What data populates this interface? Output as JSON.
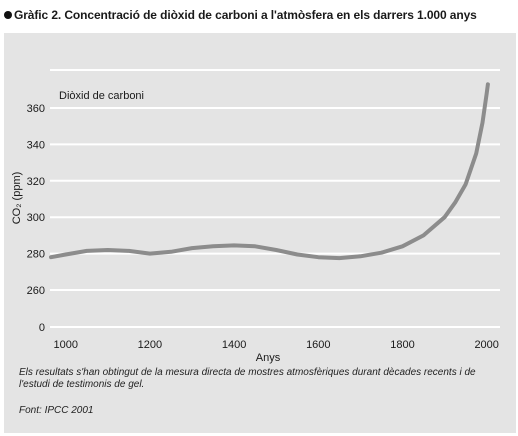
{
  "heading": {
    "title": "Gràfic 2. Concentració de diòxid de carboni a l'atmòsfera en els darrers 1.000 anys"
  },
  "chart_data": {
    "type": "line",
    "series": [
      {
        "name": "Diòxid de carboni",
        "x": [
          965,
          1000,
          1050,
          1100,
          1150,
          1200,
          1250,
          1300,
          1350,
          1400,
          1450,
          1500,
          1550,
          1600,
          1650,
          1700,
          1750,
          1800,
          1850,
          1900,
          1925,
          1950,
          1975,
          1990,
          2000,
          2003
        ],
        "y": [
          278,
          279.5,
          281.5,
          282,
          281.5,
          280,
          281,
          283,
          284,
          284.5,
          284,
          282,
          279.5,
          278,
          277.5,
          278.5,
          280.5,
          284,
          290,
          300,
          308,
          318,
          335,
          352,
          368,
          373
        ],
        "color": "#8c8c8c"
      }
    ],
    "xlabel": "Anys",
    "ylabel": "CO₂ (ppm)",
    "xlim": [
      965,
      2015
    ],
    "ylim": [
      0,
      380
    ],
    "x_ticks": [
      1000,
      1200,
      1400,
      1600,
      1800,
      2000
    ],
    "y_ticks": [
      0,
      260,
      280,
      300,
      320,
      340,
      360
    ],
    "y_axis_break": "0–260",
    "grid": "horizontal",
    "legend": "top-left"
  },
  "notes": {
    "method": "Els resultats s'han obtingut de la mesura directa de mostres atmosfèriques durant dècades recents i de l'estudi de testimonis de gel.",
    "source": "Font: IPCC 2001"
  }
}
